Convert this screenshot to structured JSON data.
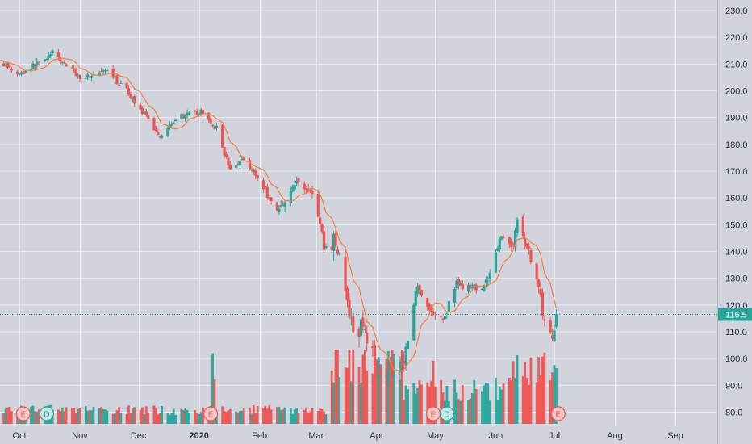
{
  "chart_data": {
    "type": "candlestick",
    "y_axis": {
      "ticks": [
        80.0,
        90.0,
        100.0,
        110.0,
        120.0,
        130.0,
        140.0,
        150.0,
        160.0,
        170.0,
        180.0,
        190.0,
        200.0,
        210.0,
        220.0,
        230.0
      ],
      "tick_labels": [
        "80.0",
        "90.0",
        "100.0",
        "110.0",
        "120.0",
        "130.0",
        "140.0",
        "150.0",
        "160.0",
        "170.0",
        "180.0",
        "190.0",
        "200.0",
        "210.0",
        "220.0",
        "230.0"
      ],
      "ylim": [
        75,
        233
      ]
    },
    "x_axis": {
      "labels": [
        "Oct",
        "Nov",
        "Dec",
        "2020",
        "Feb",
        "Mar",
        "Apr",
        "May",
        "Jun",
        "Jul",
        "Aug",
        "Sep"
      ],
      "bold_label": "2020"
    },
    "last_price": 116.5,
    "last_price_label": "116.5",
    "moving_average": {
      "color": "#f57f3d",
      "period_approx": 10
    },
    "price_anchors": [
      {
        "date": "2019-09-16",
        "price": 213
      },
      {
        "date": "2019-10-01",
        "price": 206
      },
      {
        "date": "2019-10-18",
        "price": 214
      },
      {
        "date": "2019-11-01",
        "price": 205
      },
      {
        "date": "2019-11-15",
        "price": 207
      },
      {
        "date": "2019-11-25",
        "price": 200
      },
      {
        "date": "2019-12-05",
        "price": 190
      },
      {
        "date": "2019-12-12",
        "price": 183
      },
      {
        "date": "2019-12-20",
        "price": 190
      },
      {
        "date": "2020-01-02",
        "price": 192
      },
      {
        "date": "2020-01-10",
        "price": 186
      },
      {
        "date": "2020-01-17",
        "price": 170
      },
      {
        "date": "2020-01-24",
        "price": 175
      },
      {
        "date": "2020-02-03",
        "price": 164
      },
      {
        "date": "2020-02-10",
        "price": 155
      },
      {
        "date": "2020-02-20",
        "price": 166
      },
      {
        "date": "2020-02-28",
        "price": 162
      },
      {
        "date": "2020-03-06",
        "price": 140
      },
      {
        "date": "2020-03-11",
        "price": 145
      },
      {
        "date": "2020-03-16",
        "price": 125
      },
      {
        "date": "2020-03-20",
        "price": 108
      },
      {
        "date": "2020-03-25",
        "price": 113
      },
      {
        "date": "2020-04-01",
        "price": 96
      },
      {
        "date": "2020-04-08",
        "price": 96
      },
      {
        "date": "2020-04-15",
        "price": 100
      },
      {
        "date": "2020-04-22",
        "price": 128
      },
      {
        "date": "2020-04-28",
        "price": 118
      },
      {
        "date": "2020-05-05",
        "price": 114
      },
      {
        "date": "2020-05-12",
        "price": 128
      },
      {
        "date": "2020-05-19",
        "price": 126
      },
      {
        "date": "2020-05-27",
        "price": 128
      },
      {
        "date": "2020-06-03",
        "price": 145
      },
      {
        "date": "2020-06-09",
        "price": 142
      },
      {
        "date": "2020-06-12",
        "price": 150
      },
      {
        "date": "2020-06-15",
        "price": 146
      },
      {
        "date": "2020-06-19",
        "price": 138
      },
      {
        "date": "2020-06-24",
        "price": 124
      },
      {
        "date": "2020-06-26",
        "price": 112
      },
      {
        "date": "2020-06-30",
        "price": 108
      },
      {
        "date": "2020-07-02",
        "price": 116.5
      }
    ],
    "event_markers": [
      {
        "date": "2019-10-03",
        "label": "E"
      },
      {
        "date": "2019-10-15",
        "label": "D"
      },
      {
        "date": "2020-01-07",
        "label": "E"
      },
      {
        "date": "2020-04-30",
        "label": "E"
      },
      {
        "date": "2020-05-07",
        "label": "D"
      },
      {
        "date": "2020-07-03",
        "label": "E"
      }
    ],
    "grid": true,
    "colors": {
      "background": "#d1d4dc",
      "grid": "#e8eaf0",
      "up": "#26a69a",
      "down": "#ef5350",
      "ma": "#f57f3d",
      "price_line": "#26a69a",
      "text": "#2a2e39"
    }
  }
}
